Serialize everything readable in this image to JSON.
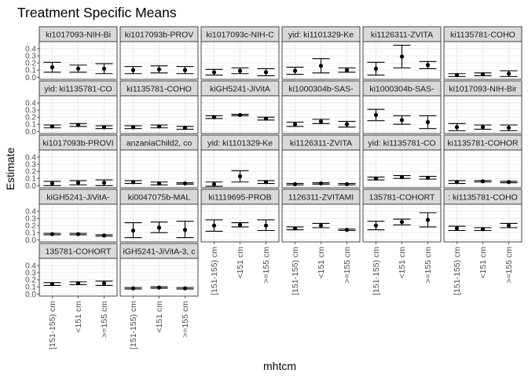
{
  "chart_data": {
    "type": "errorbar",
    "title": "Treatment Specific Means",
    "xlabel": "mhtcm",
    "ylabel": "Estimate",
    "categories": [
      "[151-155) cm",
      "<151 cm",
      ">=155 cm"
    ],
    "ylim": [
      -0.03,
      0.5
    ],
    "yticks": [
      "0.0",
      "0.1",
      "0.2",
      "0.3",
      "0.4"
    ],
    "grid": true,
    "facets": [
      {
        "label": "ki1017093-NIH-Bi",
        "estimate": [
          0.14,
          0.12,
          0.12
        ],
        "lower": [
          0.07,
          0.07,
          0.05
        ],
        "upper": [
          0.21,
          0.17,
          0.19
        ]
      },
      {
        "label": "ki1017093b-PROV",
        "estimate": [
          0.1,
          0.11,
          0.1
        ],
        "lower": [
          0.05,
          0.06,
          0.05
        ],
        "upper": [
          0.15,
          0.16,
          0.15
        ]
      },
      {
        "label": "ki1017093c-NIH-C",
        "estimate": [
          0.07,
          0.09,
          0.07
        ],
        "lower": [
          0.03,
          0.05,
          0.02
        ],
        "upper": [
          0.11,
          0.13,
          0.12
        ]
      },
      {
        "label": "yid: ki1101329-Ke",
        "estimate": [
          0.09,
          0.16,
          0.1
        ],
        "lower": [
          0.04,
          0.06,
          0.07
        ],
        "upper": [
          0.14,
          0.26,
          0.13
        ]
      },
      {
        "label": "ki1126311-ZVITA",
        "estimate": [
          0.12,
          0.29,
          0.17
        ],
        "lower": [
          0.03,
          0.13,
          0.12
        ],
        "upper": [
          0.21,
          0.45,
          0.22
        ]
      },
      {
        "label": "ki1135781-COHO",
        "estimate": [
          0.03,
          0.04,
          0.05
        ],
        "lower": [
          0.01,
          0.02,
          0.01
        ],
        "upper": [
          0.05,
          0.06,
          0.09
        ]
      },
      {
        "label": "yid: ki1135781-CO",
        "estimate": [
          0.07,
          0.09,
          0.06
        ],
        "lower": [
          0.05,
          0.07,
          0.04
        ],
        "upper": [
          0.09,
          0.11,
          0.08
        ]
      },
      {
        "label": "ki1135781-COHO",
        "estimate": [
          0.06,
          0.07,
          0.05
        ],
        "lower": [
          0.04,
          0.05,
          0.03
        ],
        "upper": [
          0.08,
          0.09,
          0.07
        ]
      },
      {
        "label": "kiGH5241-JiVitA",
        "estimate": [
          0.2,
          0.23,
          0.18
        ],
        "lower": [
          0.18,
          0.22,
          0.16
        ],
        "upper": [
          0.22,
          0.24,
          0.2
        ]
      },
      {
        "label": "ki1000304b-SAS-",
        "estimate": [
          0.1,
          0.14,
          0.1
        ],
        "lower": [
          0.07,
          0.11,
          0.06
        ],
        "upper": [
          0.13,
          0.17,
          0.14
        ]
      },
      {
        "label": "ki1000304b-SAS-",
        "estimate": [
          0.23,
          0.16,
          0.13
        ],
        "lower": [
          0.15,
          0.1,
          0.04
        ],
        "upper": [
          0.31,
          0.22,
          0.22
        ]
      },
      {
        "label": "ki1017093-NIH-Bir",
        "estimate": [
          0.06,
          0.06,
          0.05
        ],
        "lower": [
          0.01,
          0.03,
          0.01
        ],
        "upper": [
          0.11,
          0.09,
          0.09
        ]
      },
      {
        "label": "ki1017093b-PROVI",
        "estimate": [
          0.03,
          0.04,
          0.04
        ],
        "lower": [
          0.0,
          0.01,
          0.0
        ],
        "upper": [
          0.06,
          0.07,
          0.08
        ]
      },
      {
        "label": "anzaniaChild2, co",
        "estimate": [
          0.05,
          0.03,
          0.03
        ],
        "lower": [
          0.03,
          0.01,
          0.02
        ],
        "upper": [
          0.07,
          0.05,
          0.04
        ]
      },
      {
        "label": "yid: ki1101329-Ke",
        "estimate": [
          0.02,
          0.13,
          0.05
        ],
        "lower": [
          -0.01,
          0.05,
          0.03
        ],
        "upper": [
          0.05,
          0.21,
          0.07
        ]
      },
      {
        "label": "ki1126311-ZVITA",
        "estimate": [
          0.02,
          0.03,
          0.02
        ],
        "lower": [
          0.01,
          0.02,
          0.01
        ],
        "upper": [
          0.03,
          0.04,
          0.03
        ]
      },
      {
        "label": "yid: ki1135781-CO",
        "estimate": [
          0.1,
          0.12,
          0.11
        ],
        "lower": [
          0.08,
          0.1,
          0.09
        ],
        "upper": [
          0.12,
          0.14,
          0.13
        ]
      },
      {
        "label": "ki1135781-COHOR",
        "estimate": [
          0.05,
          0.06,
          0.05
        ],
        "lower": [
          0.03,
          0.05,
          0.04
        ],
        "upper": [
          0.07,
          0.07,
          0.06
        ]
      },
      {
        "label": "kiGH5241-JiVitA-",
        "estimate": [
          0.08,
          0.08,
          0.06
        ],
        "lower": [
          0.07,
          0.07,
          0.05
        ],
        "upper": [
          0.09,
          0.09,
          0.07
        ]
      },
      {
        "label": "ki0047075b-MAL",
        "estimate": [
          0.13,
          0.17,
          0.14
        ],
        "lower": [
          0.03,
          0.1,
          0.03
        ],
        "upper": [
          0.24,
          0.25,
          0.26
        ]
      },
      {
        "label": "ki1119695-PROB",
        "estimate": [
          0.2,
          0.21,
          0.2
        ],
        "lower": [
          0.12,
          0.18,
          0.13
        ],
        "upper": [
          0.28,
          0.24,
          0.28
        ]
      },
      {
        "label": "1126311-ZVITAMI",
        "estimate": [
          0.16,
          0.2,
          0.14
        ],
        "lower": [
          0.14,
          0.17,
          0.13
        ],
        "upper": [
          0.18,
          0.23,
          0.15
        ]
      },
      {
        "label": "135781-COHORT",
        "estimate": [
          0.2,
          0.25,
          0.28
        ],
        "lower": [
          0.14,
          0.21,
          0.18
        ],
        "upper": [
          0.26,
          0.29,
          0.38
        ]
      },
      {
        "label": ": ki1135781-COHO",
        "estimate": [
          0.16,
          0.15,
          0.2
        ],
        "lower": [
          0.13,
          0.13,
          0.17
        ],
        "upper": [
          0.19,
          0.17,
          0.23
        ]
      },
      {
        "label": "135781-COHORT",
        "estimate": [
          0.14,
          0.15,
          0.15
        ],
        "lower": [
          0.12,
          0.13,
          0.12
        ],
        "upper": [
          0.16,
          0.17,
          0.18
        ]
      },
      {
        "label": "iGH5241-JiVitA-3, c",
        "estimate": [
          0.08,
          0.09,
          0.08
        ],
        "lower": [
          0.07,
          0.08,
          0.07
        ],
        "upper": [
          0.09,
          0.1,
          0.09
        ]
      }
    ]
  }
}
